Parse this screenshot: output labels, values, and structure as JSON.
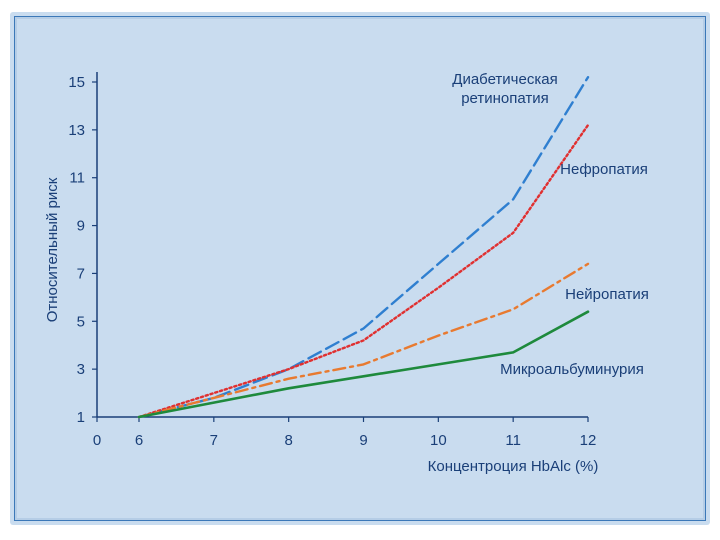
{
  "chart_data": {
    "type": "line",
    "xlabel": "Концентроция HbAlc (%)",
    "ylabel": "Относительный риск",
    "xlim": [
      0,
      12
    ],
    "ylim": [
      1,
      15
    ],
    "x_ticks": [
      "0",
      "6",
      "7",
      "8",
      "9",
      "10",
      "11",
      "12"
    ],
    "y_ticks": [
      "1",
      "3",
      "5",
      "7",
      "9",
      "11",
      "13",
      "15"
    ],
    "grid": false,
    "series": [
      {
        "name": "Диабетическая ретинопатия",
        "name_lines": [
          "Диабетическая",
          "ретинопатия"
        ],
        "color": "#2f7fd0",
        "style": "dashed",
        "x": [
          6,
          7,
          8,
          9,
          10,
          11,
          12
        ],
        "y": [
          1,
          1.8,
          3.0,
          4.7,
          7.4,
          10.1,
          15.2
        ]
      },
      {
        "name": "Нефропатия",
        "name_lines": [
          "Нефропатия"
        ],
        "color": "#e03030",
        "style": "dotted",
        "x": [
          6,
          7,
          8,
          9,
          10,
          11,
          12
        ],
        "y": [
          1,
          2.0,
          3.0,
          4.2,
          6.4,
          8.7,
          13.2
        ]
      },
      {
        "name": "Нейропатия",
        "name_lines": [
          "Нейропатия"
        ],
        "color": "#e87a30",
        "style": "dashdot",
        "x": [
          6,
          7,
          8,
          9,
          10,
          11,
          12
        ],
        "y": [
          1,
          1.8,
          2.6,
          3.2,
          4.4,
          5.5,
          7.4
        ]
      },
      {
        "name": "Микроальбуминурия",
        "name_lines": [
          "Микроальбуминурия"
        ],
        "color": "#1e8a3c",
        "style": "solid",
        "x": [
          6,
          7,
          8,
          9,
          10,
          11,
          12
        ],
        "y": [
          1,
          1.6,
          2.2,
          2.7,
          3.2,
          3.7,
          5.4
        ]
      }
    ]
  }
}
